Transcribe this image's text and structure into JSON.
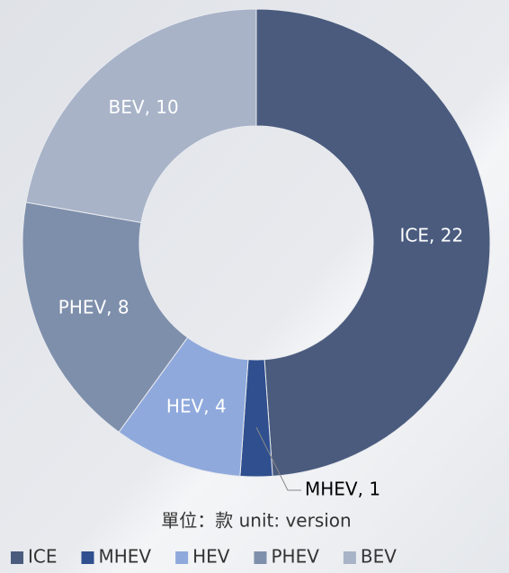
{
  "chart_data": {
    "type": "donut",
    "categories": [
      "ICE",
      "MHEV",
      "HEV",
      "PHEV",
      "BEV"
    ],
    "values": [
      22,
      1,
      4,
      8,
      10
    ],
    "value_labels": [
      "ICE, 22",
      "MHEV, 1",
      "HEV, 4",
      "PHEV, 8",
      "BEV, 10"
    ],
    "colors": [
      "#4a5b7e",
      "#2f4f8f",
      "#8fa9dc",
      "#7e8fab",
      "#a8b3c8"
    ],
    "annotation": "單位：款  unit: version",
    "legend": "bottom"
  }
}
